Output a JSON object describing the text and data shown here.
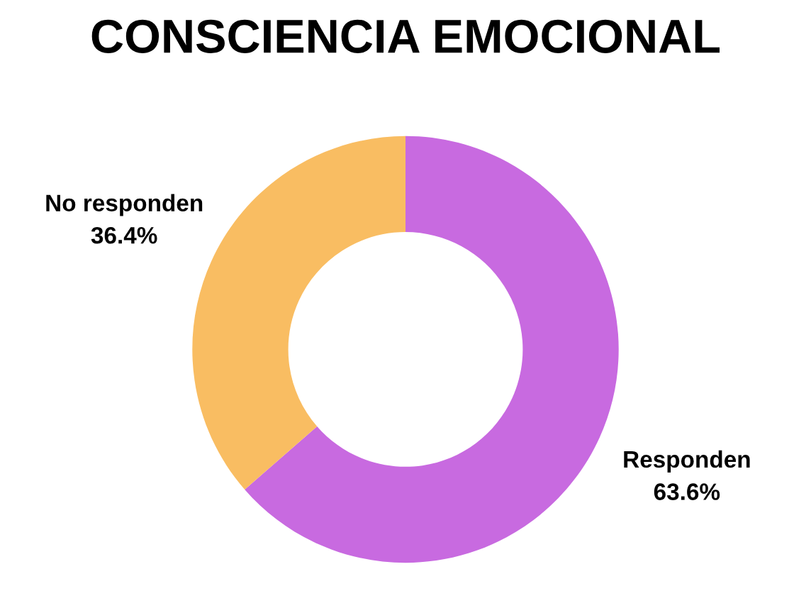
{
  "chart_data": {
    "type": "donut",
    "title": "CONSCIENCIA EMOCIONAL",
    "categories": [
      "Responden",
      "No responden"
    ],
    "values": [
      63.6,
      36.4
    ],
    "colors": [
      "#c86ae0",
      "#f9bd62"
    ],
    "value_labels": [
      "63.6%",
      "36.4%"
    ],
    "legend": false
  }
}
